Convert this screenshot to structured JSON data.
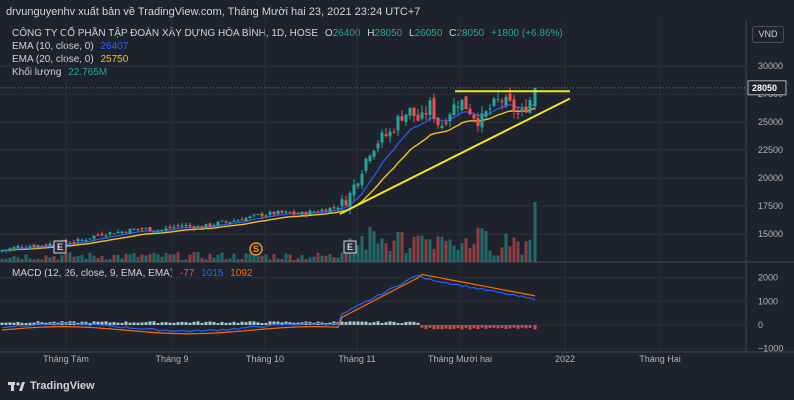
{
  "header": {
    "publisher_line": "drvunguyenhv xuất bản về TradingView.com, Tháng Mười hai 23, 2021 23:24 UTC+7"
  },
  "symbol": {
    "title": "CÔNG TY CỔ PHẦN TẬP ĐOÀN XÂY DỰNG HÒA BÌNH, 1D, HOSE",
    "open_label": "O",
    "open": "26400",
    "high_label": "H",
    "high": "28050",
    "low_label": "L",
    "low": "26050",
    "close_label": "C",
    "close": "28050",
    "change": "+1800 (+6.86%)"
  },
  "indicators": {
    "ema10_label": "EMA (10, close, 0)",
    "ema10_value": "26407",
    "ema20_label": "EMA (20, close, 0)",
    "ema20_value": "25750",
    "volume_label": "Khối lượng",
    "volume_value": "22.765M",
    "macd_label": "MACD (12, 26, close, 9, EMA, EMA)",
    "macd_hist": "-77",
    "macd_line": "1015",
    "macd_signal": "1092"
  },
  "currency": "VND",
  "last_price_badge": "28050",
  "price_axis_labels": [
    "30000",
    "27500",
    "25000",
    "22500",
    "20000",
    "17500",
    "15000"
  ],
  "macd_axis_labels": [
    "2000",
    "1000",
    "0",
    "−1000"
  ],
  "time_axis_labels": [
    "Tháng Tám",
    "Tháng 9",
    "Tháng 10",
    "Tháng 11",
    "Tháng Mười hai",
    "2022",
    "Tháng Hai"
  ],
  "event_markers": [
    "E",
    "S",
    "E"
  ],
  "footer": {
    "brand": "TradingView"
  },
  "colors": {
    "up": "#26a69a",
    "down": "#ef5350",
    "ema10": "#2962ff",
    "ema20": "#f7c31a",
    "macd": "#2962ff",
    "signal": "#ff6d00",
    "trendline": "#f5e425",
    "background": "#1e222d"
  },
  "chart_data": {
    "type": "candlestick",
    "price_range": [
      12500,
      31000
    ],
    "macd_range": [
      -1000,
      2300
    ],
    "x_months": [
      "Tháng Tám",
      "Tháng 9",
      "Tháng 10",
      "Tháng 11",
      "Tháng Mười hai",
      "2022",
      "Tháng Hai"
    ],
    "last_close": 28050,
    "ema10_last": 26407,
    "ema20_last": 25750,
    "volume_last": "22.765M",
    "macd": {
      "line_last": 1015,
      "signal_last": 1092,
      "hist_last": -77
    },
    "trendlines": [
      {
        "name": "resistance",
        "from": 27750,
        "to": 27750
      },
      {
        "name": "support",
        "from": 16800,
        "to": 27100
      }
    ]
  }
}
